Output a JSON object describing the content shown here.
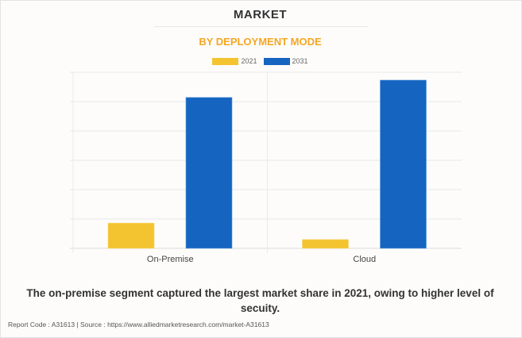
{
  "header": {
    "title": "MARKET",
    "subtitle": "BY DEPLOYMENT MODE"
  },
  "colors": {
    "series_2021": "#f4c430",
    "series_2031": "#1565c0",
    "subtitle": "#f5a623",
    "grid": "#e8e8e8"
  },
  "chart_data": {
    "type": "bar",
    "title": "MARKET",
    "subtitle": "BY DEPLOYMENT MODE",
    "categories": [
      "On-Premise",
      "Cloud"
    ],
    "series": [
      {
        "name": "2021",
        "values": [
          0.86,
          0.3
        ]
      },
      {
        "name": "2031",
        "values": [
          5.14,
          5.73
        ]
      }
    ],
    "xlabel": "",
    "ylabel": "",
    "ylim": [
      0,
      6
    ],
    "y_ticks_labeled": false,
    "grid": true,
    "legend": "top-center"
  },
  "caption": "The on-premise segment captured the largest market share in 2021, owing to higher level of secuity.",
  "footer": "Report Code : A31613  |  Source : https://www.alliedmarketresearch.com/market-A31613"
}
